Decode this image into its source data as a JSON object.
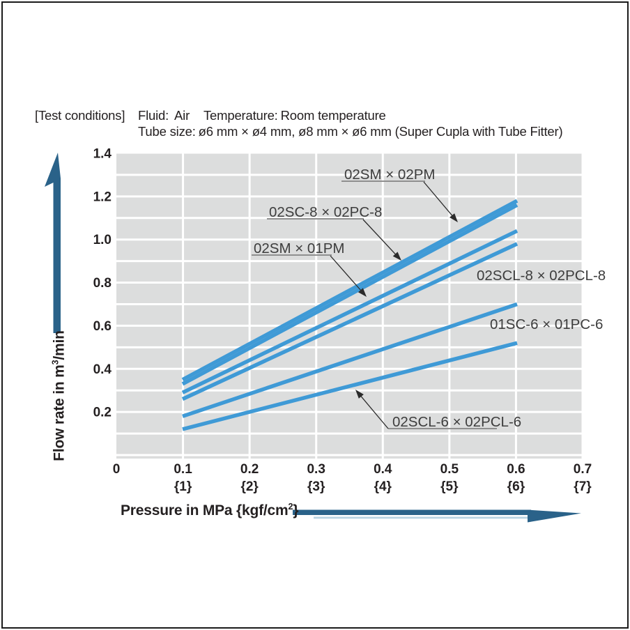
{
  "header": {
    "bracket": "[Test conditions]",
    "fluid_label": "Fluid:",
    "fluid_value": "Air",
    "temp_label": "Temperature:",
    "temp_value": "Room temperature",
    "tube_label": "Tube size:",
    "tube_value": "ø6 mm × ø4 mm, ø8 mm × ø6 mm (Super Cupla with Tube Fitter)"
  },
  "axes": {
    "y_title_prefix": "Flow rate in m",
    "y_title_sup": "3",
    "y_title_suffix": "/min",
    "x_title_prefix": "Pressure in MPa {kgf/cm",
    "x_title_sup": "2",
    "x_title_suffix": "}",
    "y_tick_labels": [
      "1.4",
      "1.2",
      "1.0",
      "0.8",
      "0.6",
      "0.4",
      "0.2"
    ],
    "y_tick_values": [
      1.4,
      1.2,
      1.0,
      0.8,
      0.6,
      0.4,
      0.2
    ],
    "x_tick_labels": [
      "0",
      "0.1",
      "0.2",
      "0.3",
      "0.4",
      "0.5",
      "0.6",
      "0.7"
    ],
    "x_tick_values": [
      0,
      0.1,
      0.2,
      0.3,
      0.4,
      0.5,
      0.6,
      0.7
    ],
    "x_tick_secondary": [
      "",
      "{1}",
      "{2}",
      "{3}",
      "{4}",
      "{5}",
      "{6}",
      "{7}"
    ]
  },
  "chart_data": {
    "type": "line",
    "x": [
      0.1,
      0.6
    ],
    "series": [
      {
        "name": "02SM × 02PM",
        "values": [
          0.35,
          1.18
        ]
      },
      {
        "name": "02SC-8 × 02PC-8",
        "values": [
          0.33,
          1.16
        ]
      },
      {
        "name": "02SM × 01PM",
        "values": [
          0.29,
          1.04
        ]
      },
      {
        "name": "02SCL-8 × 02PCL-8",
        "values": [
          0.26,
          0.98
        ]
      },
      {
        "name": "01SC-6 × 01PC-6",
        "values": [
          0.18,
          0.7
        ]
      },
      {
        "name": "02SCL-6 × 02PCL-6",
        "values": [
          0.12,
          0.52
        ]
      }
    ],
    "xlabel": "Pressure in MPa {kgf/cm²}",
    "ylabel": "Flow rate in m³/min",
    "xlim": [
      0,
      0.7
    ],
    "ylim": [
      0,
      1.4
    ],
    "grid": true,
    "legend_position": "inline-labels"
  },
  "colors": {
    "line": "#3f9ad6",
    "plot_bg": "#dcdddd",
    "grid": "#ffffff",
    "axis_arrow": "#2a6289",
    "arrow_shadow": "#b9d3e2",
    "text": "#242021",
    "series_label": "#3d3d3d",
    "underline": "#8f8f8f",
    "leader": "#2b2b2b",
    "page_border": "#1a1a1a"
  }
}
